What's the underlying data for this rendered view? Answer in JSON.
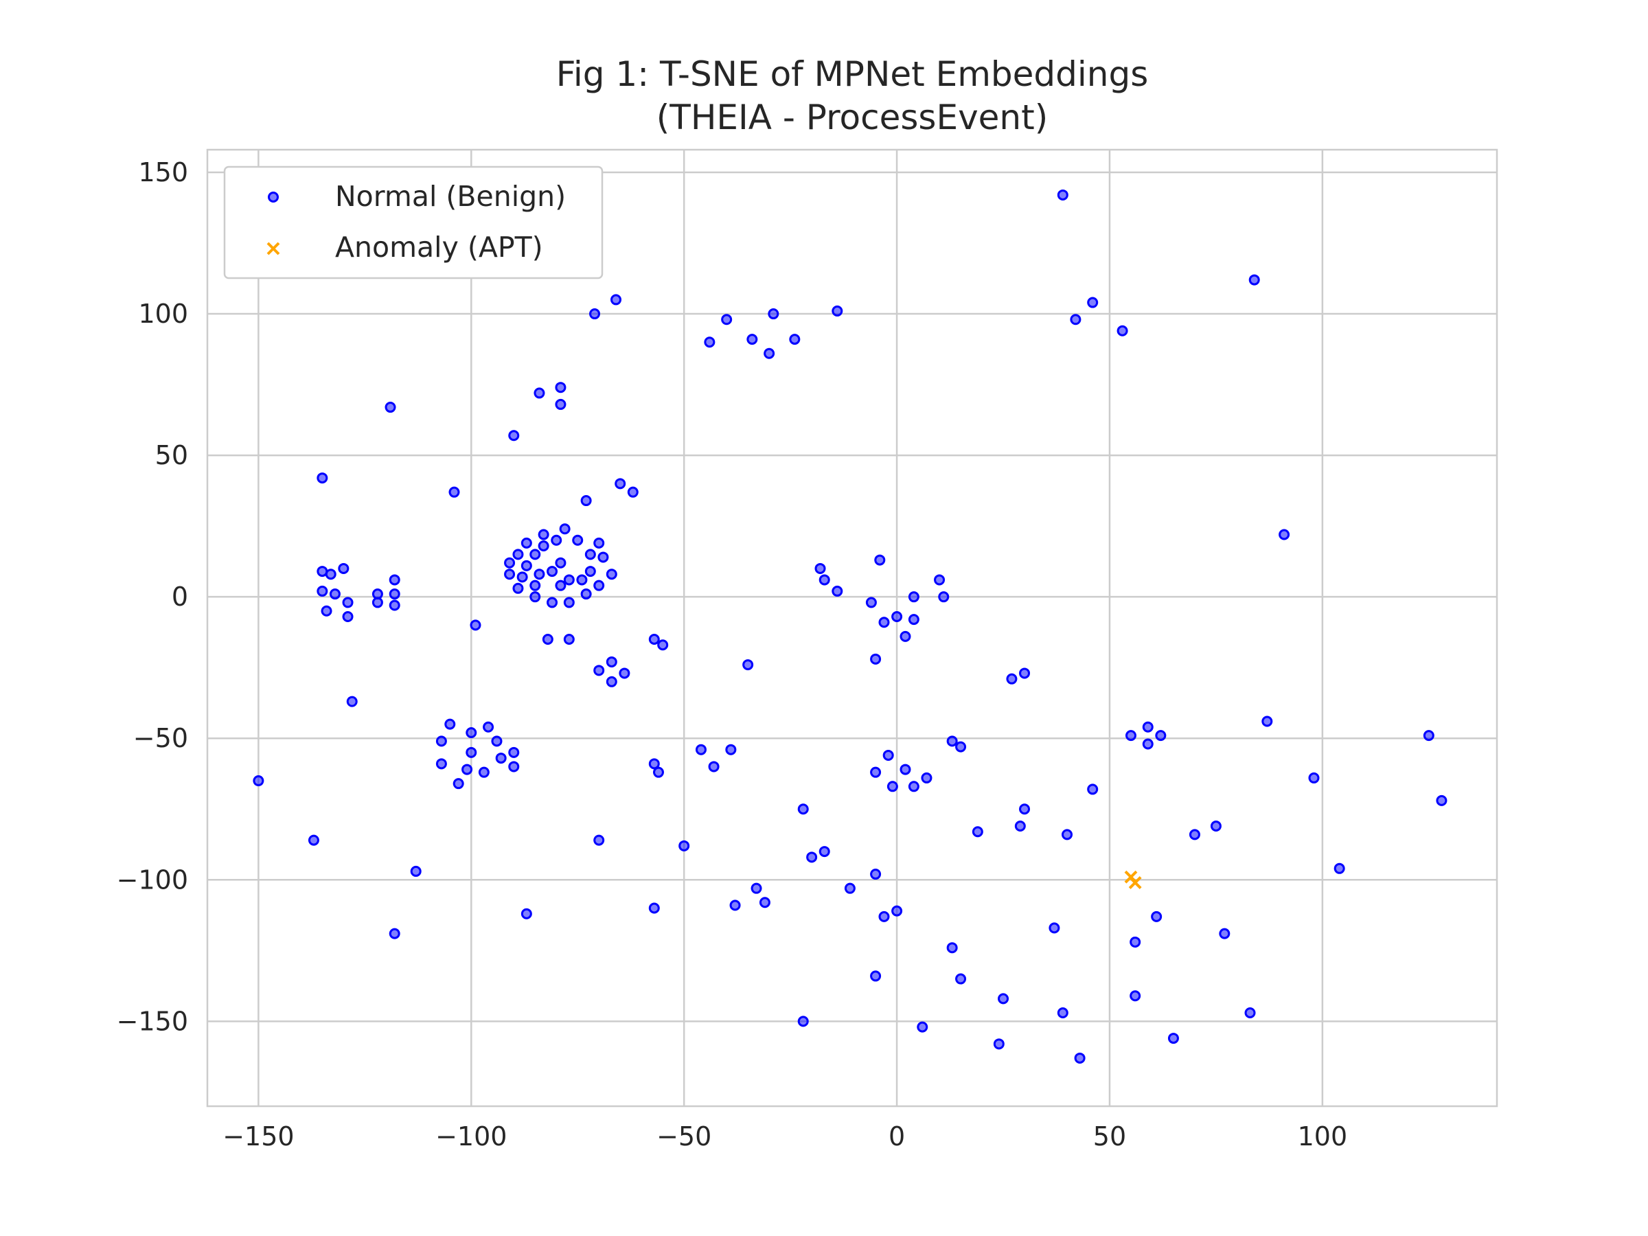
{
  "chart_data": {
    "type": "scatter",
    "title": "Fig 1: T-SNE of MPNet Embeddings",
    "subtitle": "(THEIA - ProcessEvent)",
    "xlim": [
      -162,
      141
    ],
    "ylim": [
      -180,
      158
    ],
    "x_ticks": [
      -150,
      -100,
      -50,
      0,
      50,
      100
    ],
    "y_ticks": [
      -150,
      -100,
      -50,
      0,
      50,
      100,
      150
    ],
    "x_tick_labels": [
      "−150",
      "−100",
      "−50",
      "0",
      "50",
      "100"
    ],
    "y_tick_labels": [
      "−150",
      "−100",
      "−50",
      "0",
      "50",
      "100",
      "150"
    ],
    "grid": true,
    "legend_position": "top-left",
    "series": [
      {
        "name": "Normal (Benign)",
        "marker": "circle",
        "color": "#0000ff",
        "alpha": 0.5,
        "points": [
          [
            39,
            142
          ],
          [
            46,
            104
          ],
          [
            42,
            98
          ],
          [
            53,
            94
          ],
          [
            84,
            112
          ],
          [
            91,
            22
          ],
          [
            -66,
            105
          ],
          [
            -71,
            100
          ],
          [
            -40,
            98
          ],
          [
            -44,
            90
          ],
          [
            -34,
            91
          ],
          [
            -30,
            86
          ],
          [
            -29,
            100
          ],
          [
            -24,
            91
          ],
          [
            -14,
            101
          ],
          [
            -84,
            72
          ],
          [
            -79,
            74
          ],
          [
            -79,
            68
          ],
          [
            -90,
            57
          ],
          [
            -119,
            67
          ],
          [
            -135,
            42
          ],
          [
            -104,
            37
          ],
          [
            -73,
            34
          ],
          [
            -65,
            40
          ],
          [
            -62,
            37
          ],
          [
            -135,
            9
          ],
          [
            -133,
            8
          ],
          [
            -130,
            10
          ],
          [
            -135,
            2
          ],
          [
            -132,
            1
          ],
          [
            -134,
            -5
          ],
          [
            -129,
            -2
          ],
          [
            -129,
            -7
          ],
          [
            -122,
            1
          ],
          [
            -122,
            -2
          ],
          [
            -118,
            6
          ],
          [
            -118,
            1
          ],
          [
            -118,
            -3
          ],
          [
            -91,
            12
          ],
          [
            -89,
            15
          ],
          [
            -87,
            19
          ],
          [
            -85,
            15
          ],
          [
            -83,
            18
          ],
          [
            -83,
            22
          ],
          [
            -80,
            20
          ],
          [
            -78,
            24
          ],
          [
            -75,
            20
          ],
          [
            -72,
            15
          ],
          [
            -70,
            19
          ],
          [
            -91,
            8
          ],
          [
            -88,
            7
          ],
          [
            -87,
            11
          ],
          [
            -85,
            4
          ],
          [
            -84,
            8
          ],
          [
            -81,
            9
          ],
          [
            -79,
            12
          ],
          [
            -77,
            6
          ],
          [
            -74,
            6
          ],
          [
            -72,
            9
          ],
          [
            -69,
            14
          ],
          [
            -67,
            8
          ],
          [
            -89,
            3
          ],
          [
            -85,
            0
          ],
          [
            -81,
            -2
          ],
          [
            -77,
            -2
          ],
          [
            -73,
            1
          ],
          [
            -79,
            4
          ],
          [
            -70,
            4
          ],
          [
            -82,
            -15
          ],
          [
            -77,
            -15
          ],
          [
            -99,
            -10
          ],
          [
            -57,
            -15
          ],
          [
            -55,
            -17
          ],
          [
            -70,
            -26
          ],
          [
            -67,
            -23
          ],
          [
            -67,
            -30
          ],
          [
            -64,
            -27
          ],
          [
            -35,
            -24
          ],
          [
            -128,
            -37
          ],
          [
            -4,
            13
          ],
          [
            -18,
            10
          ],
          [
            -17,
            6
          ],
          [
            -14,
            2
          ],
          [
            -6,
            -2
          ],
          [
            -3,
            -9
          ],
          [
            0,
            -7
          ],
          [
            2,
            -14
          ],
          [
            4,
            -8
          ],
          [
            4,
            0
          ],
          [
            10,
            6
          ],
          [
            11,
            0
          ],
          [
            -5,
            -22
          ],
          [
            30,
            -27
          ],
          [
            27,
            -29
          ],
          [
            -105,
            -45
          ],
          [
            -96,
            -46
          ],
          [
            -100,
            -48
          ],
          [
            -107,
            -51
          ],
          [
            -94,
            -51
          ],
          [
            -90,
            -55
          ],
          [
            -100,
            -55
          ],
          [
            -93,
            -57
          ],
          [
            -107,
            -59
          ],
          [
            -90,
            -60
          ],
          [
            -101,
            -61
          ],
          [
            -97,
            -62
          ],
          [
            -103,
            -66
          ],
          [
            -57,
            -59
          ],
          [
            -56,
            -62
          ],
          [
            -46,
            -54
          ],
          [
            -39,
            -54
          ],
          [
            -43,
            -60
          ],
          [
            -2,
            -56
          ],
          [
            2,
            -61
          ],
          [
            -5,
            -62
          ],
          [
            7,
            -64
          ],
          [
            -1,
            -67
          ],
          [
            4,
            -67
          ],
          [
            13,
            -51
          ],
          [
            15,
            -53
          ],
          [
            55,
            -49
          ],
          [
            59,
            -46
          ],
          [
            62,
            -49
          ],
          [
            59,
            -52
          ],
          [
            46,
            -68
          ],
          [
            87,
            -44
          ],
          [
            98,
            -64
          ],
          [
            125,
            -49
          ],
          [
            128,
            -72
          ],
          [
            -150,
            -65
          ],
          [
            -137,
            -86
          ],
          [
            -113,
            -97
          ],
          [
            -118,
            -119
          ],
          [
            -70,
            -86
          ],
          [
            -50,
            -88
          ],
          [
            -87,
            -112
          ],
          [
            -57,
            -110
          ],
          [
            -33,
            -103
          ],
          [
            -38,
            -109
          ],
          [
            -31,
            -108
          ],
          [
            -22,
            -75
          ],
          [
            -20,
            -92
          ],
          [
            -17,
            -90
          ],
          [
            -11,
            -103
          ],
          [
            -5,
            -98
          ],
          [
            -3,
            -113
          ],
          [
            0,
            -111
          ],
          [
            -5,
            -134
          ],
          [
            19,
            -83
          ],
          [
            29,
            -81
          ],
          [
            30,
            -75
          ],
          [
            40,
            -84
          ],
          [
            70,
            -84
          ],
          [
            75,
            -81
          ],
          [
            104,
            -96
          ],
          [
            61,
            -113
          ],
          [
            77,
            -119
          ],
          [
            56,
            -122
          ],
          [
            37,
            -117
          ],
          [
            13,
            -124
          ],
          [
            15,
            -135
          ],
          [
            56,
            -141
          ],
          [
            25,
            -142
          ],
          [
            39,
            -147
          ],
          [
            24,
            -158
          ],
          [
            43,
            -163
          ],
          [
            65,
            -156
          ],
          [
            83,
            -147
          ],
          [
            -22,
            -150
          ],
          [
            6,
            -152
          ]
        ]
      },
      {
        "name": "Anomaly (APT)",
        "marker": "x",
        "color": "#ffa500",
        "points": [
          [
            55,
            -99
          ],
          [
            56,
            -101
          ]
        ]
      }
    ]
  }
}
